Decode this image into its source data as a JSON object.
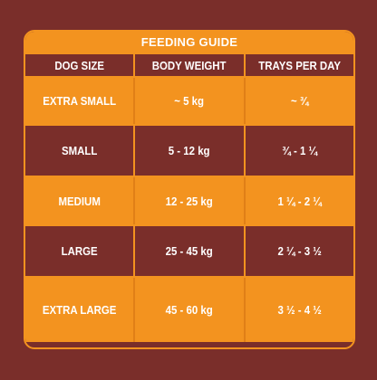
{
  "title": "FEEDING GUIDE",
  "columns": [
    "DOG SIZE",
    "BODY WEIGHT",
    "TRAYS PER DAY"
  ],
  "rows": [
    {
      "size": "EXTRA SMALL",
      "weight": "~ 5 kg",
      "trays": "~ ¾"
    },
    {
      "size": "SMALL",
      "weight": "5 - 12 kg",
      "trays": "¾ - 1 ¼"
    },
    {
      "size": "MEDIUM",
      "weight": "12 - 25 kg",
      "trays": "1 ¼ - 2 ¼"
    },
    {
      "size": "LARGE",
      "weight": "25 - 45 kg",
      "trays": "2 ¼ - 3 ½"
    },
    {
      "size": "EXTRA LARGE",
      "weight": "45 - 60 kg",
      "trays": "3 ½ - 4 ½"
    }
  ],
  "colors": {
    "background": "#7a2e2a",
    "accent": "#f3931f",
    "text": "#ffffff"
  }
}
